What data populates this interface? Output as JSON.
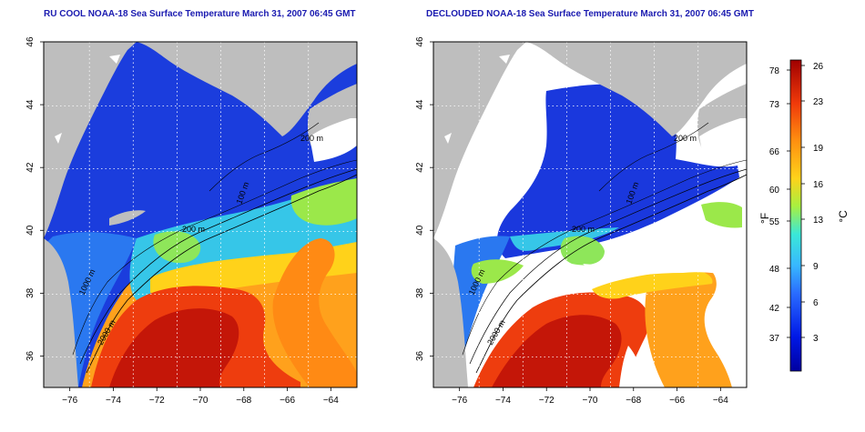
{
  "chart_data": [
    {
      "type": "heatmap",
      "title": "RU COOL NOAA-18 Sea Surface Temperature March 31, 2007 06:45 GMT",
      "xlabel": "",
      "ylabel": "",
      "x_ticks": [
        -76,
        -74,
        -72,
        -70,
        -68,
        -66,
        -64
      ],
      "y_ticks": [
        36,
        38,
        40,
        42,
        44,
        46
      ],
      "xlim": [
        -77.2,
        -62.8
      ],
      "ylim": [
        35.0,
        46.0
      ],
      "grid": "dotted",
      "contour_labels": [
        "2000 m",
        "1000 m",
        "200 m",
        "100 m",
        "200 m"
      ]
    },
    {
      "type": "heatmap",
      "title": "DECLOUDED NOAA-18 Sea Surface Temperature March 31, 2007 06:45 GMT",
      "xlabel": "",
      "ylabel": "",
      "x_ticks": [
        -76,
        -74,
        -72,
        -70,
        -68,
        -66,
        -64
      ],
      "y_ticks": [
        36,
        38,
        40,
        42,
        44,
        46
      ],
      "xlim": [
        -77.2,
        -62.8
      ],
      "ylim": [
        35.0,
        46.0
      ],
      "grid": "dotted",
      "contour_labels": [
        "2000 m",
        "1000 m",
        "200 m",
        "100 m",
        "200 m"
      ]
    }
  ],
  "colorbar": {
    "fahrenheit_ticks": [
      "37",
      "42",
      "48",
      "55",
      "60",
      "66",
      "73",
      "78"
    ],
    "celsius_ticks": [
      "3",
      "6",
      "9",
      "13",
      "16",
      "19",
      "23",
      "26"
    ],
    "f_label": "°F",
    "c_label": "°C",
    "colors": [
      "#0000a0",
      "#0018e6",
      "#2a6cff",
      "#38b8ff",
      "#3ae8d8",
      "#a8f040",
      "#ffd21a",
      "#ff9010",
      "#f03a0a",
      "#a00000"
    ]
  },
  "map_colors": {
    "land": "#bebebe",
    "cloud": "#ffffff",
    "frame": "#000000"
  }
}
